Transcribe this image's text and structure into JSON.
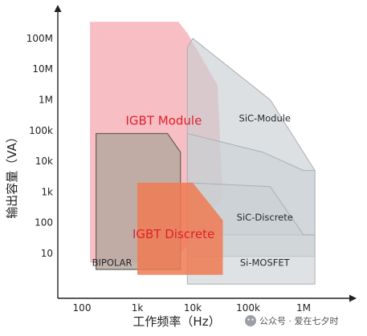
{
  "chart_data": {
    "type": "area",
    "title": "",
    "xlabel": "工作频率（Hz）",
    "ylabel": "输出容量（VA）",
    "x_scale": "log",
    "y_scale": "log",
    "xlim": [
      50,
      2000000
    ],
    "ylim": [
      1,
      700000000
    ],
    "x_ticks": [
      {
        "value": 100,
        "label": "100"
      },
      {
        "value": 1000,
        "label": "1k"
      },
      {
        "value": 10000,
        "label": "10k"
      },
      {
        "value": 100000,
        "label": "100k"
      },
      {
        "value": 1000000,
        "label": "1M"
      }
    ],
    "y_ticks": [
      {
        "value": 10,
        "label": "10"
      },
      {
        "value": 100,
        "label": "100"
      },
      {
        "value": 1000,
        "label": "1k"
      },
      {
        "value": 10000,
        "label": "10k"
      },
      {
        "value": 100000,
        "label": "100k"
      },
      {
        "value": 1000000,
        "label": "1M"
      },
      {
        "value": 10000000,
        "label": "10M"
      },
      {
        "value": 100000000,
        "label": "100M"
      }
    ],
    "grid": false,
    "series": [
      {
        "name": "IGBT Module",
        "color": "#f4a8b0",
        "opacity": 0.75,
        "polygon": [
          [
            140,
            5
          ],
          [
            4500,
            5
          ],
          [
            35000,
            600
          ],
          [
            28000,
            3000000
          ],
          [
            8000,
            150000000
          ],
          [
            5500,
            350000000
          ],
          [
            140,
            350000000
          ]
        ]
      },
      {
        "name": "SiC-Module",
        "color": "#c9cfd3",
        "opacity": 0.65,
        "polygon": [
          [
            8000,
            8
          ],
          [
            1600000,
            8
          ],
          [
            1600000,
            5000
          ],
          [
            250000,
            1000000
          ],
          [
            10000,
            100000000
          ],
          [
            8000,
            50000000
          ]
        ]
      },
      {
        "name": "SiC-Discrete",
        "color": "#c9cfd3",
        "opacity": 0.55,
        "polygon": [
          [
            8000,
            40
          ],
          [
            1600000,
            40
          ],
          [
            1600000,
            5000
          ],
          [
            1000000,
            5000
          ],
          [
            180000,
            20000
          ],
          [
            8000,
            80000
          ]
        ]
      },
      {
        "name": "Si-MOSFET",
        "color": "#c9cfd3",
        "opacity": 0.6,
        "polygon": [
          [
            8000,
            1
          ],
          [
            1600000,
            1
          ],
          [
            1600000,
            40
          ],
          [
            1000000,
            40
          ],
          [
            250000,
            1500
          ],
          [
            8000,
            2000
          ]
        ]
      },
      {
        "name": "BIPOLAR",
        "color": "#b7a8a0",
        "opacity": 0.85,
        "polygon": [
          [
            180,
            3
          ],
          [
            6000,
            3
          ],
          [
            6000,
            20000
          ],
          [
            3500,
            80000
          ],
          [
            180,
            80000
          ]
        ]
      },
      {
        "name": "IGBT Discrete",
        "color": "#ef7a52",
        "opacity": 0.85,
        "polygon": [
          [
            1000,
            2
          ],
          [
            35000,
            2
          ],
          [
            35000,
            120
          ],
          [
            10000,
            2000
          ],
          [
            1000,
            2000
          ]
        ]
      }
    ],
    "labels": [
      {
        "series": "IGBT Module",
        "text": "IGBT Module",
        "x": 3000,
        "y": 200000,
        "style": "big"
      },
      {
        "series": "SiC-Module",
        "text": "SiC-Module",
        "x": 200000,
        "y": 250000,
        "style": "normal"
      },
      {
        "series": "SiC-Discrete",
        "text": "SiC-Discrete",
        "x": 200000,
        "y": 150,
        "style": "normal"
      },
      {
        "series": "IGBT Discrete",
        "text": "IGBT Discrete",
        "x": 4500,
        "y": 40,
        "style": "big"
      },
      {
        "series": "Si-MOSFET",
        "text": "Si-MOSFET",
        "x": 200000,
        "y": 5,
        "style": "normal"
      },
      {
        "series": "BIPOLAR",
        "text": "BIPOLAR",
        "x": 350,
        "y": 5,
        "style": "normal"
      }
    ]
  },
  "watermark": {
    "text": "公众号 · 爱在七夕时",
    "icon": "wechat-icon"
  }
}
